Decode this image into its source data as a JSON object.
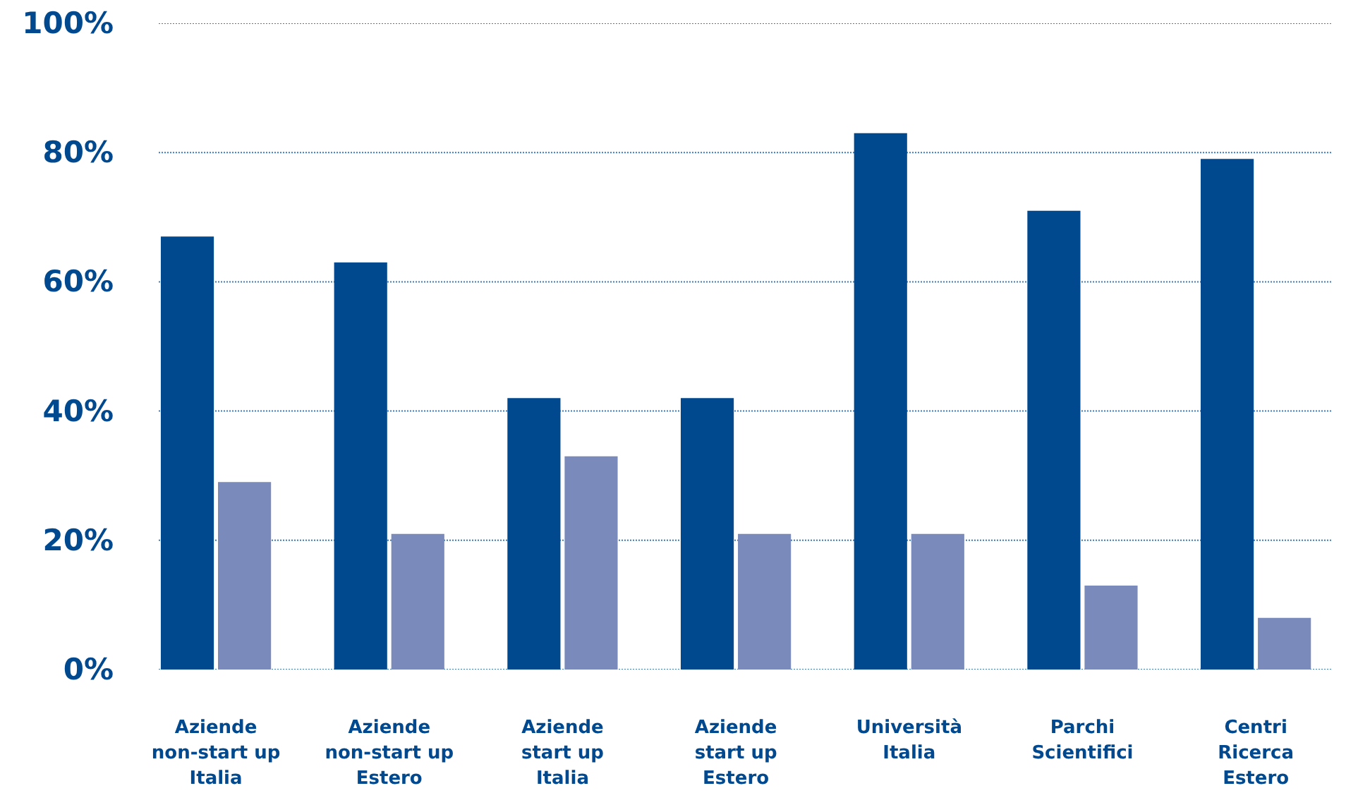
{
  "chart_data": {
    "type": "bar",
    "categories": [
      "Aziende non-start up Italia",
      "Aziende non-start up Estero",
      "Aziende start up Italia",
      "Aziende start up Estero",
      "Università Italia",
      "Parchi Scientifici",
      "Centri Ricerca Estero"
    ],
    "series": [
      {
        "color": "#00498f",
        "values": [
          67,
          63,
          42,
          42,
          83,
          71,
          79
        ]
      },
      {
        "color": "#7a8bbb",
        "values": [
          29,
          21,
          33,
          21,
          21,
          13,
          8
        ]
      }
    ],
    "ylim": [
      0,
      100
    ],
    "yticks": [
      {
        "value": 0,
        "label": "0%"
      },
      {
        "value": 20,
        "label": "20%"
      },
      {
        "value": 40,
        "label": "40%"
      },
      {
        "value": 60,
        "label": "60%"
      },
      {
        "value": 80,
        "label": "80%"
      },
      {
        "value": 100,
        "label": "100%"
      }
    ],
    "grid": "y"
  }
}
